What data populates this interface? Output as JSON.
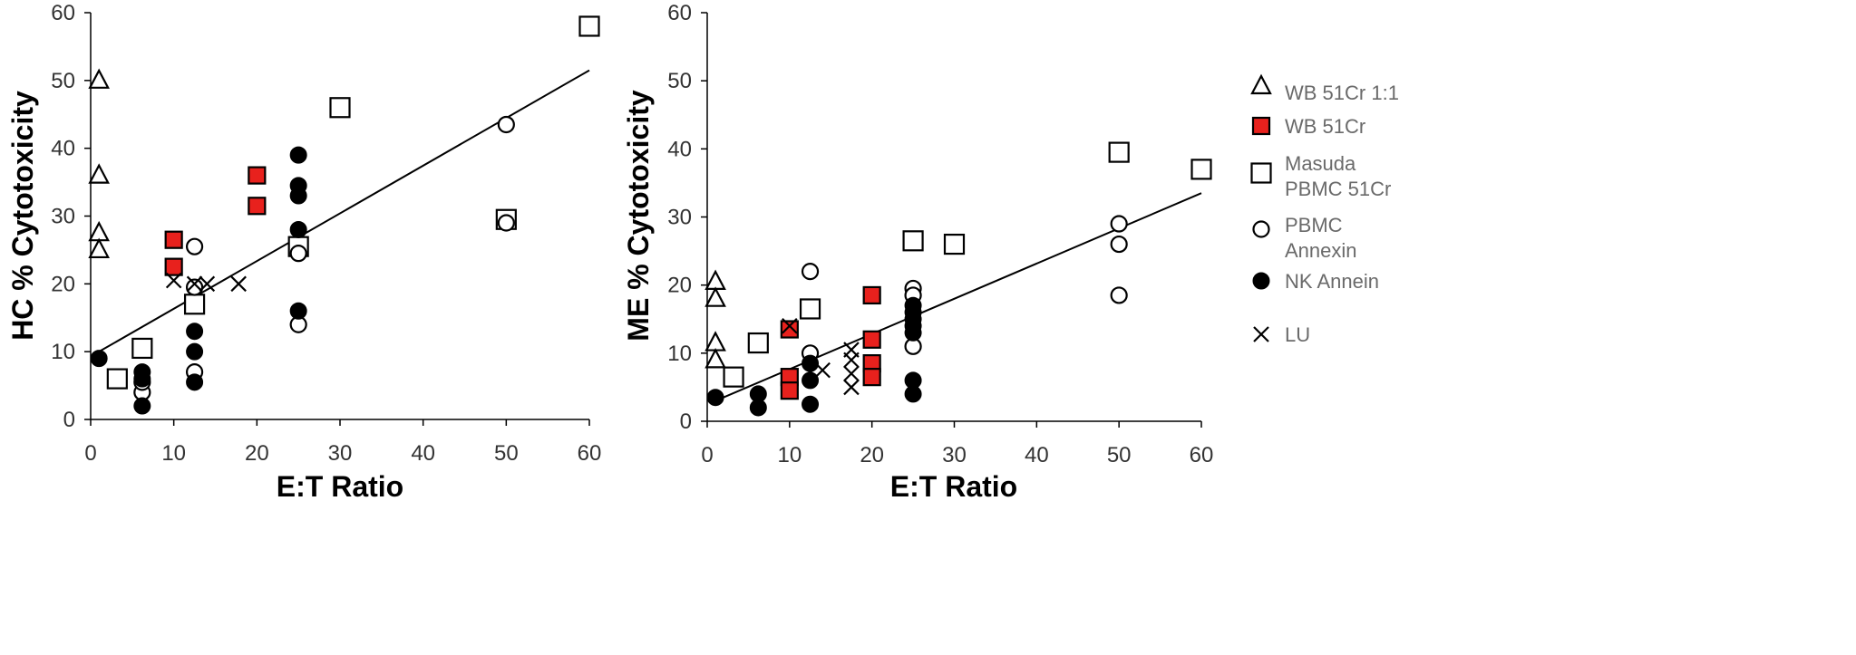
{
  "chart_data": [
    {
      "type": "scatter",
      "id": "hc",
      "xlabel": "E:T Ratio",
      "ylabel": "HC % Cytotoxicity",
      "xlim": [
        0,
        60
      ],
      "ylim": [
        0,
        60
      ],
      "xticks": [
        0,
        10,
        20,
        30,
        40,
        50,
        60
      ],
      "yticks": [
        0,
        10,
        20,
        30,
        40,
        50,
        60
      ],
      "fit_line": {
        "x": [
          1,
          60
        ],
        "y": [
          10,
          51.5
        ]
      },
      "series": [
        {
          "name": "WB 51Cr 1:1",
          "marker": "triangle",
          "points": [
            [
              1,
              50
            ],
            [
              1,
              36
            ],
            [
              1,
              27.5
            ],
            [
              1,
              25
            ]
          ]
        },
        {
          "name": "WB 51Cr",
          "marker": "square-red",
          "points": [
            [
              10,
              26.5
            ],
            [
              10,
              22.5
            ],
            [
              20,
              36
            ],
            [
              20,
              31.5
            ]
          ]
        },
        {
          "name": "Masuda PBMC 51Cr",
          "marker": "square",
          "points": [
            [
              3.2,
              6
            ],
            [
              6.2,
              10.5
            ],
            [
              12.5,
              17
            ],
            [
              25,
              25.5
            ],
            [
              30,
              46
            ],
            [
              50,
              29.5
            ],
            [
              60,
              58
            ]
          ]
        },
        {
          "name": "PBMC Annexin",
          "marker": "circle",
          "points": [
            [
              6.2,
              4
            ],
            [
              6.2,
              5.5
            ],
            [
              12.5,
              25.5
            ],
            [
              12.5,
              19.5
            ],
            [
              12.5,
              7
            ],
            [
              25,
              24.5
            ],
            [
              25,
              14
            ],
            [
              50,
              43.5
            ],
            [
              50,
              29
            ]
          ]
        },
        {
          "name": "NK Annein",
          "marker": "dot",
          "points": [
            [
              1,
              9
            ],
            [
              6.2,
              7
            ],
            [
              6.2,
              6
            ],
            [
              6.2,
              2
            ],
            [
              12.5,
              13
            ],
            [
              12.5,
              10
            ],
            [
              12.5,
              5.5
            ],
            [
              25,
              39
            ],
            [
              25,
              34.5
            ],
            [
              25,
              33
            ],
            [
              25,
              28
            ],
            [
              25,
              16
            ]
          ]
        },
        {
          "name": "LU",
          "marker": "cross",
          "points": [
            [
              10,
              20.5
            ],
            [
              12.5,
              20
            ],
            [
              14,
              20
            ],
            [
              17.8,
              20
            ]
          ]
        }
      ]
    },
    {
      "type": "scatter",
      "id": "me",
      "xlabel": "E:T Ratio",
      "ylabel": "ME % Cytotoxicity",
      "xlim": [
        0,
        60
      ],
      "ylim": [
        0,
        60
      ],
      "xticks": [
        0,
        10,
        20,
        30,
        40,
        50,
        60
      ],
      "yticks": [
        0,
        10,
        20,
        30,
        40,
        50,
        60
      ],
      "fit_line": {
        "x": [
          1,
          60
        ],
        "y": [
          3,
          33.5
        ]
      },
      "series": [
        {
          "name": "WB 51Cr 1:1",
          "marker": "triangle",
          "points": [
            [
              1,
              20.5
            ],
            [
              1,
              18
            ],
            [
              1,
              11.5
            ],
            [
              1,
              9
            ]
          ]
        },
        {
          "name": "WB 51Cr",
          "marker": "square-red",
          "points": [
            [
              10,
              13.5
            ],
            [
              10,
              6.5
            ],
            [
              10,
              4.5
            ],
            [
              20,
              18.5
            ],
            [
              20,
              12
            ],
            [
              20,
              8.5
            ],
            [
              20,
              6.5
            ]
          ]
        },
        {
          "name": "Masuda PBMC 51Cr",
          "marker": "square",
          "points": [
            [
              3.2,
              6.5
            ],
            [
              6.2,
              11.5
            ],
            [
              12.5,
              16.5
            ],
            [
              25,
              26.5
            ],
            [
              30,
              26
            ],
            [
              50,
              39.5
            ],
            [
              60,
              37
            ]
          ]
        },
        {
          "name": "PBMC Annexin",
          "marker": "circle",
          "points": [
            [
              12.5,
              22
            ],
            [
              12.5,
              10
            ],
            [
              25,
              19.5
            ],
            [
              25,
              18.5
            ],
            [
              25,
              11
            ],
            [
              50,
              29
            ],
            [
              50,
              26
            ],
            [
              50,
              18.5
            ]
          ]
        },
        {
          "name": "NK Annein",
          "marker": "dot",
          "points": [
            [
              1,
              3.5
            ],
            [
              6.2,
              4
            ],
            [
              6.2,
              2
            ],
            [
              12.5,
              8.5
            ],
            [
              12.5,
              6
            ],
            [
              12.5,
              2.5
            ],
            [
              25,
              17
            ],
            [
              25,
              16
            ],
            [
              25,
              15
            ],
            [
              25,
              14
            ],
            [
              25,
              13
            ],
            [
              25,
              6
            ],
            [
              25,
              4
            ]
          ]
        },
        {
          "name": "LU",
          "marker": "cross",
          "points": [
            [
              10,
              14
            ],
            [
              17.5,
              10.5
            ],
            [
              17.5,
              9
            ],
            [
              17.5,
              7
            ],
            [
              17.5,
              5
            ],
            [
              14,
              7.5
            ]
          ]
        }
      ]
    }
  ],
  "legend": {
    "entries": [
      {
        "marker": "triangle",
        "lines": [
          "WB 51Cr 1:1"
        ]
      },
      {
        "marker": "square-red",
        "lines": [
          "WB 51Cr"
        ]
      },
      {
        "marker": "square",
        "lines": [
          "Masuda",
          "PBMC 51Cr"
        ]
      },
      {
        "marker": "circle",
        "lines": [
          "PBMC",
          "Annexin"
        ]
      },
      {
        "marker": "dot",
        "lines": [
          "NK Annein"
        ]
      },
      {
        "marker": "cross",
        "lines": [
          "LU"
        ]
      }
    ]
  },
  "colors": {
    "red_fill": "#e8211d",
    "stroke": "#000000",
    "legend_text": "#6a6a6a"
  }
}
